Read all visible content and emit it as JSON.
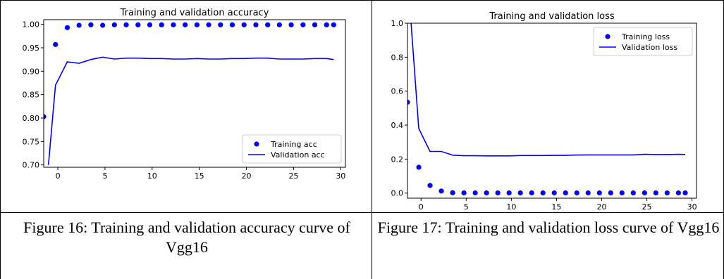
{
  "captions": [
    "Figure 16: Training and validation accuracy curve of Vgg16",
    "Figure 17: Training and validation loss curve of Vgg16"
  ],
  "chart_data": [
    {
      "type": "line",
      "title": "Training and validation accuracy",
      "xlim": [
        -1.5,
        30.5
      ],
      "ylim": [
        0.695,
        1.01
      ],
      "xticks": [
        0,
        5,
        10,
        15,
        20,
        25,
        30
      ],
      "yticks": [
        0.7,
        0.75,
        0.8,
        0.85,
        0.9,
        0.95,
        1.0
      ],
      "ytick_decimals": 2,
      "grid": false,
      "legend_position": "lower-right",
      "colors": {
        "series": "#0000ff"
      },
      "series": [
        {
          "name": "Training acc",
          "style": "dots",
          "x": [
            -1.5,
            -0.25,
            1,
            2.25,
            3.5,
            4.75,
            6,
            7.25,
            8.5,
            9.75,
            11,
            12.25,
            13.5,
            14.75,
            16,
            17.25,
            18.5,
            19.75,
            21,
            22.25,
            23.5,
            24.75,
            26,
            27.25,
            28.5,
            29.25
          ],
          "y": [
            0.803,
            0.957,
            0.993,
            0.998,
            0.999,
            0.998,
            0.999,
            0.999,
            0.999,
            0.999,
            0.999,
            0.999,
            0.999,
            0.999,
            0.999,
            0.999,
            0.999,
            0.999,
            0.999,
            0.999,
            0.999,
            0.999,
            0.999,
            0.999,
            0.999,
            0.999
          ]
        },
        {
          "name": "Validation acc",
          "style": "line",
          "x": [
            -1,
            -0.25,
            1,
            2.25,
            3.5,
            4.75,
            6,
            7.25,
            8.5,
            9.75,
            11,
            12.25,
            13.5,
            14.75,
            16,
            17.25,
            18.5,
            19.75,
            21,
            22.25,
            23.5,
            24.75,
            26,
            27.25,
            28.5,
            29.25
          ],
          "y": [
            0.7,
            0.87,
            0.92,
            0.917,
            0.925,
            0.93,
            0.926,
            0.928,
            0.928,
            0.927,
            0.927,
            0.926,
            0.926,
            0.927,
            0.926,
            0.926,
            0.927,
            0.927,
            0.928,
            0.928,
            0.926,
            0.926,
            0.926,
            0.927,
            0.927,
            0.925
          ]
        }
      ]
    },
    {
      "type": "line",
      "title": "Training and validation loss",
      "xlim": [
        -1.5,
        30.5
      ],
      "ylim": [
        -0.03,
        1.0
      ],
      "xticks": [
        0,
        5,
        10,
        15,
        20,
        25,
        30
      ],
      "yticks": [
        0.0,
        0.2,
        0.4,
        0.6,
        0.8,
        1.0
      ],
      "ytick_decimals": 1,
      "grid": false,
      "legend_position": "upper-right",
      "colors": {
        "series": "#0000ff"
      },
      "series": [
        {
          "name": "Training loss",
          "style": "dots",
          "x": [
            -1.5,
            -0.25,
            1,
            2.25,
            3.5,
            4.75,
            6,
            7.25,
            8.5,
            9.75,
            11,
            12.25,
            13.5,
            14.75,
            16,
            17.25,
            18.5,
            19.75,
            21,
            22.25,
            23.5,
            24.75,
            26,
            27.25,
            28.5,
            29.25
          ],
          "y": [
            0.535,
            0.152,
            0.045,
            0.012,
            0.002,
            0.001,
            0.001,
            0.001,
            0.001,
            0.001,
            0.001,
            0.001,
            0.001,
            0.001,
            0.001,
            0.001,
            0.001,
            0.001,
            0.001,
            0.001,
            0.001,
            0.001,
            0.001,
            0.001,
            0.001,
            0.001
          ]
        },
        {
          "name": "Validation loss",
          "style": "line",
          "x": [
            -1.1,
            -0.25,
            1,
            2.25,
            3.5,
            4.75,
            6,
            7.25,
            8.5,
            9.75,
            11,
            12.25,
            13.5,
            14.75,
            16,
            17.25,
            18.5,
            19.75,
            21,
            22.25,
            23.5,
            24.75,
            26,
            27.25,
            28.5,
            29.25
          ],
          "y": [
            1.0,
            0.38,
            0.245,
            0.245,
            0.223,
            0.22,
            0.22,
            0.219,
            0.219,
            0.219,
            0.221,
            0.221,
            0.221,
            0.222,
            0.222,
            0.224,
            0.225,
            0.225,
            0.225,
            0.225,
            0.225,
            0.228,
            0.227,
            0.227,
            0.228,
            0.227
          ]
        }
      ]
    }
  ]
}
